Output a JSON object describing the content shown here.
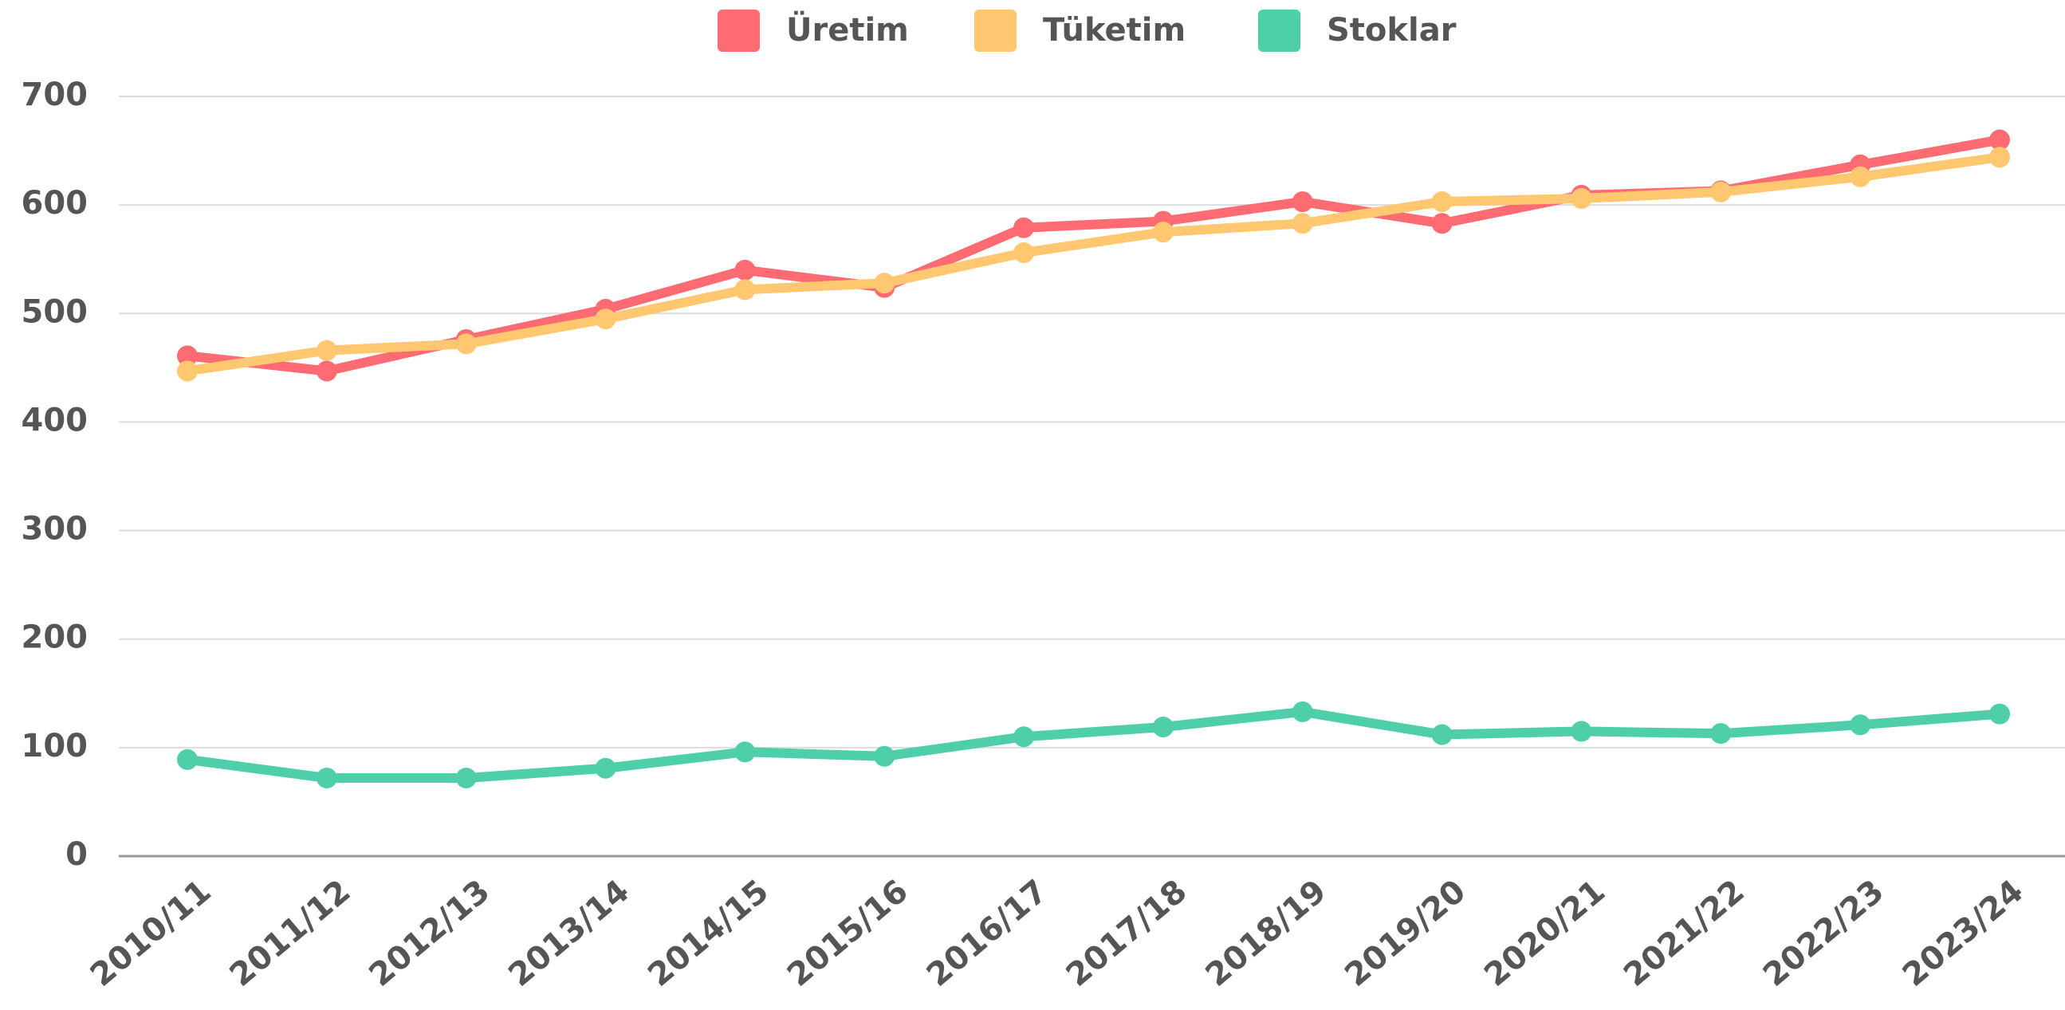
{
  "chart_data": {
    "type": "line",
    "categories": [
      "2010/11",
      "2011/12",
      "2012/13",
      "2013/14",
      "2014/15",
      "2015/16",
      "2016/17",
      "2017/18",
      "2018/19",
      "2019/20",
      "2020/21",
      "2021/22",
      "2022/23",
      "2023/24"
    ],
    "series": [
      {
        "name": "Üretim",
        "color": "#ff6b72",
        "values": [
          461,
          447,
          476,
          504,
          540,
          524,
          579,
          585,
          603,
          583,
          609,
          613,
          637,
          660
        ]
      },
      {
        "name": "Tüketim",
        "color": "#ffc870",
        "values": [
          447,
          466,
          472,
          495,
          522,
          528,
          556,
          575,
          583,
          603,
          606,
          612,
          626,
          644
        ]
      },
      {
        "name": "Stoklar",
        "color": "#4ecfaa",
        "values": [
          89,
          72,
          72,
          81,
          96,
          92,
          110,
          119,
          133,
          112,
          115,
          113,
          121,
          131
        ]
      }
    ],
    "ylim": [
      0,
      700
    ],
    "yticks": [
      0,
      100,
      200,
      300,
      400,
      500,
      600,
      700
    ],
    "grid": true,
    "legend": "top"
  }
}
